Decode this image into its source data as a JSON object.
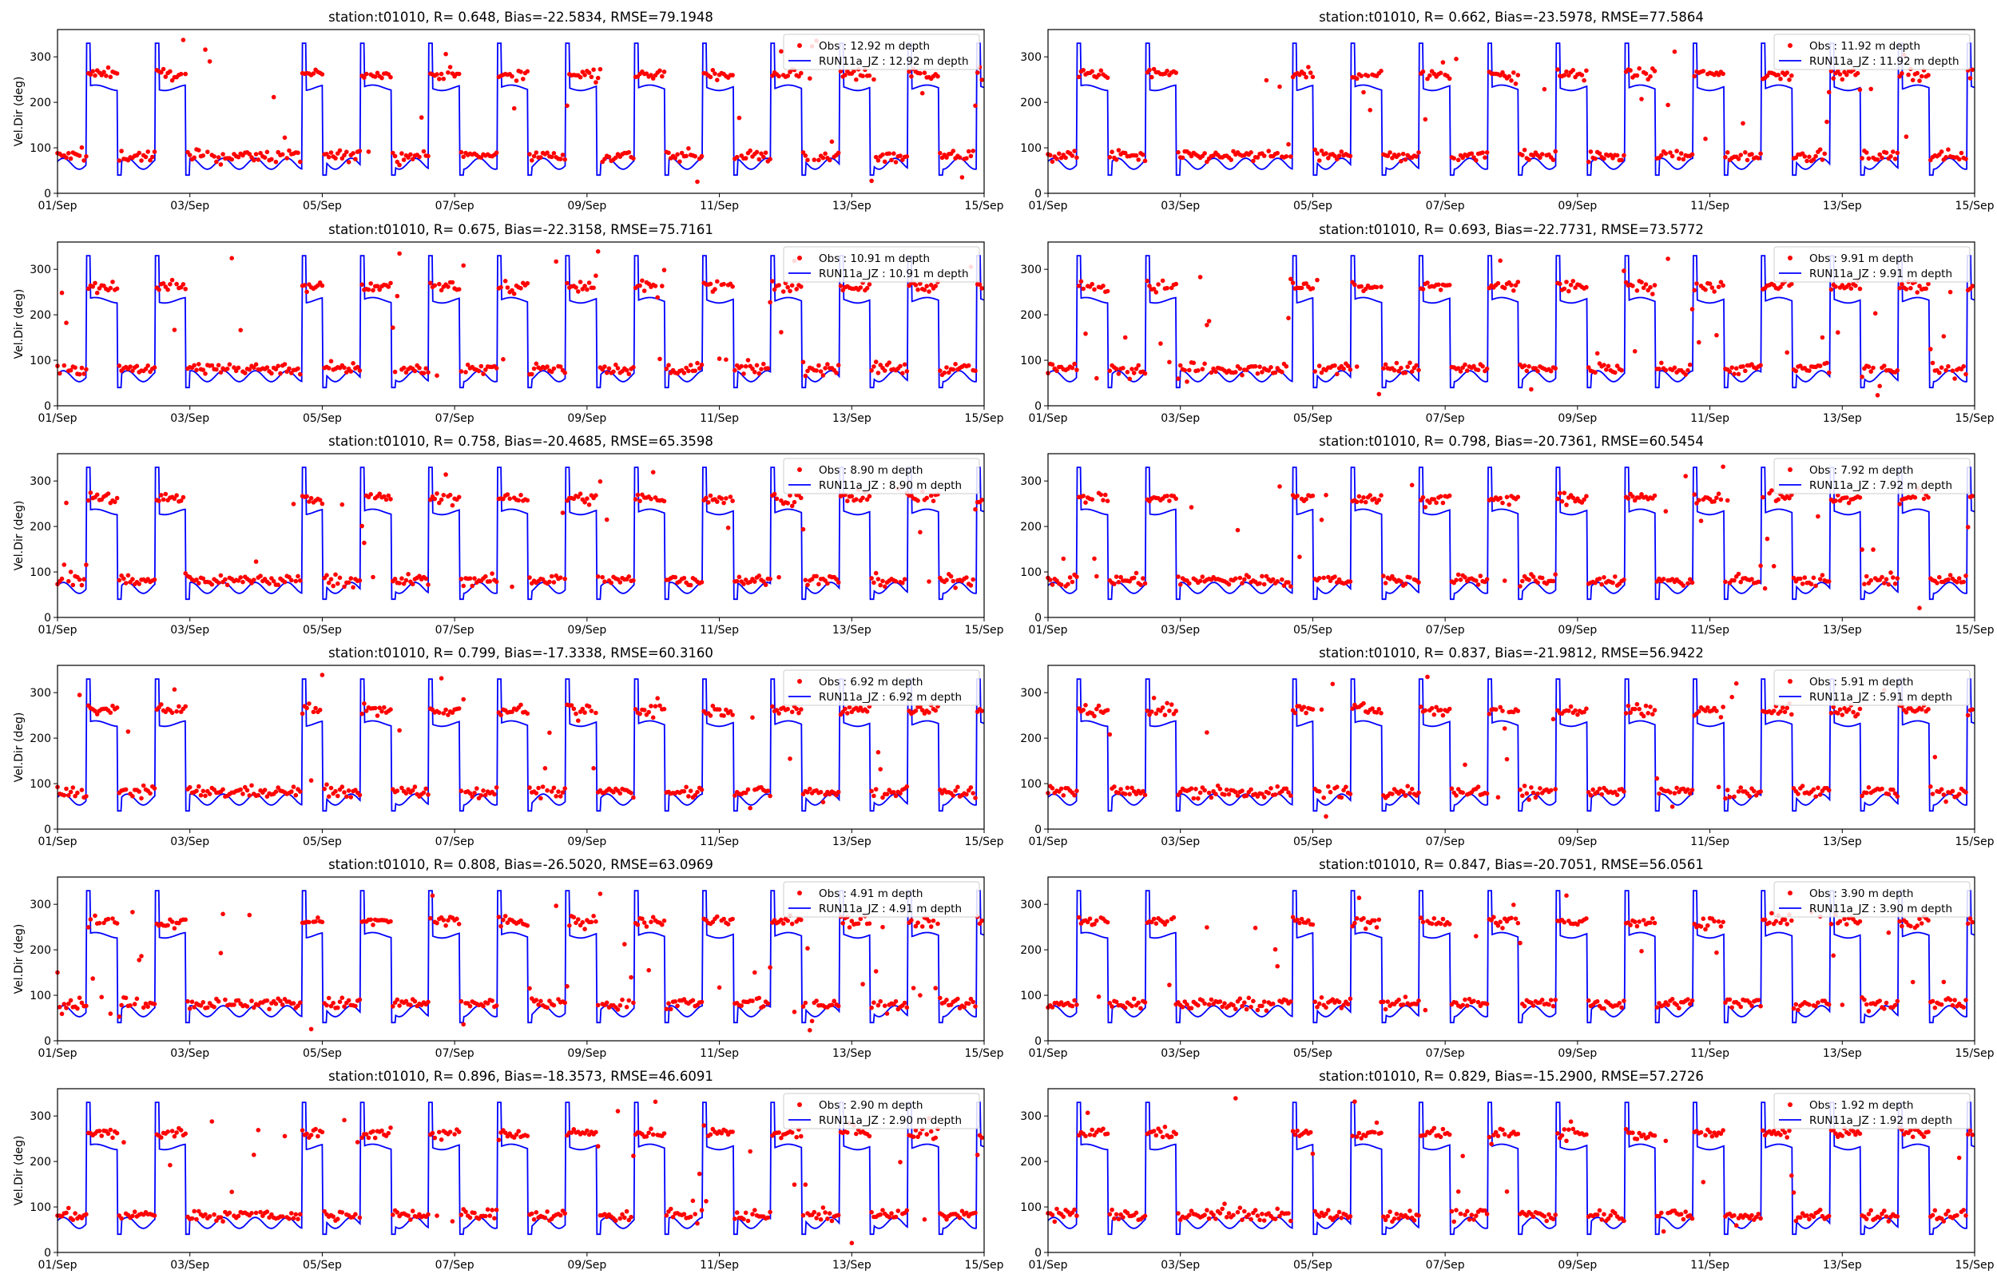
{
  "colors": {
    "obs": "#ff0000",
    "model": "#0000ff",
    "axis": "#000000",
    "legend_border": "#cccccc"
  },
  "shared": {
    "ylabel": "Vel.Dir (deg)",
    "yticks": [
      "0",
      "100",
      "200",
      "300"
    ],
    "xticks": [
      "01/Sep",
      "03/Sep",
      "05/Sep",
      "07/Sep",
      "09/Sep",
      "11/Sep",
      "13/Sep",
      "15/Sep"
    ],
    "xlim_days": [
      1,
      15
    ],
    "ylim": [
      0,
      360
    ],
    "legend_placement": "top-right"
  },
  "chart_data": [
    {
      "type": "scatter+line",
      "title": "station:t01010, R= 0.648, Bias=-22.5834, RMSE=79.1948",
      "obs_label": "Obs : 12.92 m depth",
      "model_label": "RUN11a_JZ : 12.92 m depth",
      "r": 0.648,
      "bias": -22.5834,
      "rmse": 79.1948,
      "depth_m": 12.92
    },
    {
      "type": "scatter+line",
      "title": "station:t01010, R= 0.662, Bias=-23.5978, RMSE=77.5864",
      "obs_label": "Obs : 11.92 m depth",
      "model_label": "RUN11a_JZ : 11.92 m depth",
      "r": 0.662,
      "bias": -23.5978,
      "rmse": 77.5864,
      "depth_m": 11.92
    },
    {
      "type": "scatter+line",
      "title": "station:t01010, R= 0.675, Bias=-22.3158, RMSE=75.7161",
      "obs_label": "Obs : 10.91 m depth",
      "model_label": "RUN11a_JZ : 10.91 m depth",
      "r": 0.675,
      "bias": -22.3158,
      "rmse": 75.7161,
      "depth_m": 10.91
    },
    {
      "type": "scatter+line",
      "title": "station:t01010, R= 0.693, Bias=-22.7731, RMSE=73.5772",
      "obs_label": "Obs : 9.91 m depth",
      "model_label": "RUN11a_JZ : 9.91 m depth",
      "r": 0.693,
      "bias": -22.7731,
      "rmse": 73.5772,
      "depth_m": 9.91
    },
    {
      "type": "scatter+line",
      "title": "station:t01010, R= 0.758, Bias=-20.4685, RMSE=65.3598",
      "obs_label": "Obs : 8.90 m depth",
      "model_label": "RUN11a_JZ : 8.90 m depth",
      "r": 0.758,
      "bias": -20.4685,
      "rmse": 65.3598,
      "depth_m": 8.9
    },
    {
      "type": "scatter+line",
      "title": "station:t01010, R= 0.798, Bias=-20.7361, RMSE=60.5454",
      "obs_label": "Obs : 7.92 m depth",
      "model_label": "RUN11a_JZ : 7.92 m depth",
      "r": 0.798,
      "bias": -20.7361,
      "rmse": 60.5454,
      "depth_m": 7.92
    },
    {
      "type": "scatter+line",
      "title": "station:t01010, R= 0.799, Bias=-17.3338, RMSE=60.3160",
      "obs_label": "Obs : 6.92 m depth",
      "model_label": "RUN11a_JZ : 6.92 m depth",
      "r": 0.799,
      "bias": -17.3338,
      "rmse": 60.316,
      "depth_m": 6.92
    },
    {
      "type": "scatter+line",
      "title": "station:t01010, R= 0.837, Bias=-21.9812, RMSE=56.9422",
      "obs_label": "Obs : 5.91 m depth",
      "model_label": "RUN11a_JZ : 5.91 m depth",
      "r": 0.837,
      "bias": -21.9812,
      "rmse": 56.9422,
      "depth_m": 5.91
    },
    {
      "type": "scatter+line",
      "title": "station:t01010, R= 0.808, Bias=-26.5020, RMSE=63.0969",
      "obs_label": "Obs : 4.91 m depth",
      "model_label": "RUN11a_JZ : 4.91 m depth",
      "r": 0.808,
      "bias": -26.502,
      "rmse": 63.0969,
      "depth_m": 4.91
    },
    {
      "type": "scatter+line",
      "title": "station:t01010, R= 0.847, Bias=-20.7051, RMSE=56.0561",
      "obs_label": "Obs : 3.90 m depth",
      "model_label": "RUN11a_JZ : 3.90 m depth",
      "r": 0.847,
      "bias": -20.7051,
      "rmse": 56.0561,
      "depth_m": 3.9
    },
    {
      "type": "scatter+line",
      "title": "station:t01010, R= 0.896, Bias=-18.3573, RMSE=46.6091",
      "obs_label": "Obs : 2.90 m depth",
      "model_label": "RUN11a_JZ : 2.90 m depth",
      "r": 0.896,
      "bias": -18.3573,
      "rmse": 46.6091,
      "depth_m": 2.9
    },
    {
      "type": "scatter+line",
      "title": "station:t01010, R= 0.829, Bias=-15.2900, RMSE=57.2726",
      "obs_label": "Obs : 1.92 m depth",
      "model_label": "RUN11a_JZ : 1.92 m depth",
      "r": 0.829,
      "bias": -15.29,
      "rmse": 57.2726,
      "depth_m": 1.92
    }
  ]
}
